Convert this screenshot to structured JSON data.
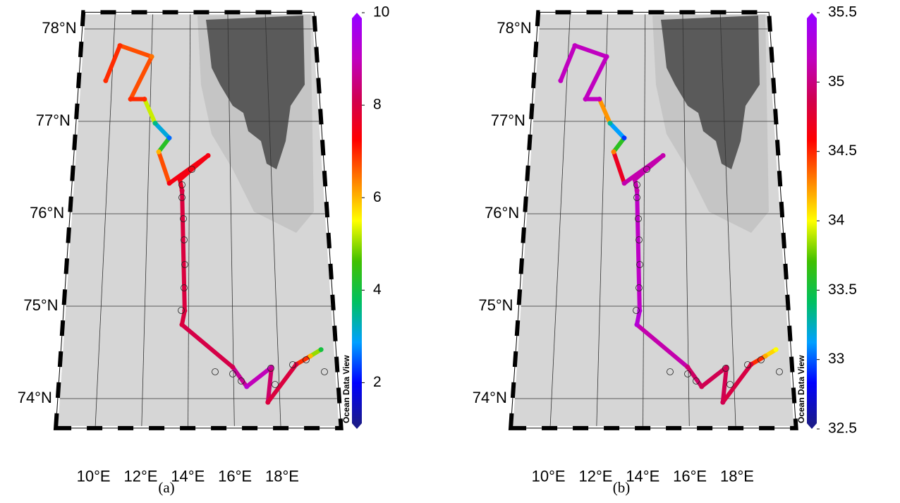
{
  "lat_labels": [
    {
      "value": 78,
      "label": "78°N"
    },
    {
      "value": 77,
      "label": "77°N"
    },
    {
      "value": 76,
      "label": "76°N"
    },
    {
      "value": 75,
      "label": "75°N"
    },
    {
      "value": 74,
      "label": "74°N"
    }
  ],
  "lon_labels": [
    {
      "value": 10,
      "label": "10°E"
    },
    {
      "value": 12,
      "label": "12°E"
    },
    {
      "value": 14,
      "label": "14°E"
    },
    {
      "value": 16,
      "label": "16°E"
    },
    {
      "value": 18,
      "label": "18°E"
    }
  ],
  "colormap": [
    "#1a1a8c",
    "#0000ff",
    "#00a0ff",
    "#00c060",
    "#40c000",
    "#ffff00",
    "#ff8000",
    "#ff0000",
    "#d00050",
    "#c000c0",
    "#9a00ff"
  ],
  "track": {
    "lon": [
      9.68,
      10.33,
      12.01,
      10.99,
      11.7,
      12.27,
      12.99,
      12.48,
      13.03,
      14.92,
      13.54,
      13.65,
      13.82,
      13.7,
      15.97,
      16.57,
      17.69,
      17.48,
      18.79,
      19.44,
      19.93
    ],
    "lat": [
      77.44,
      77.82,
      77.7,
      77.24,
      77.24,
      76.98,
      76.82,
      76.67,
      76.33,
      76.63,
      76.37,
      76.25,
      74.95,
      74.8,
      74.34,
      74.13,
      74.34,
      73.96,
      74.37,
      74.46,
      74.53
    ]
  },
  "panels": [
    {
      "label": "(a)",
      "watermark": "Ocean Data View",
      "colorbar": {
        "min": 1,
        "max": 10,
        "ticks": [
          2,
          4,
          6,
          8,
          10
        ]
      },
      "values": [
        7,
        7,
        6.5,
        7,
        7,
        3.5,
        2.5,
        6,
        7.5,
        7.5,
        7.5,
        8,
        8,
        8,
        8.2,
        9.3,
        8.8,
        8,
        8,
        6,
        4
      ]
    },
    {
      "label": "(b)",
      "watermark": "Ocean Data View",
      "colorbar": {
        "min": 32.5,
        "max": 35.5,
        "ticks": [
          32.5,
          33,
          33.5,
          34,
          34.5,
          35,
          35.5
        ]
      },
      "values": [
        35.2,
        35.2,
        35.2,
        35.2,
        35.2,
        33.3,
        32.9,
        34.3,
        35.15,
        35.15,
        35.15,
        35.15,
        35.3,
        35.3,
        35.0,
        34.9,
        34.9,
        34.9,
        34.8,
        34.2,
        34.0
      ]
    }
  ]
}
